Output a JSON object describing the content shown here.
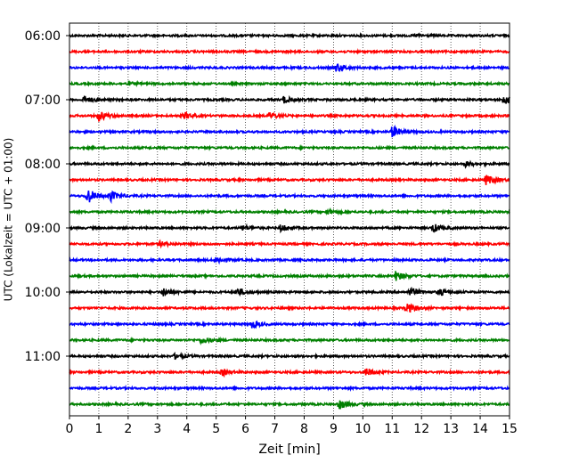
{
  "chart_data": {
    "type": "line",
    "title": "",
    "xlabel": "Zeit  [min]",
    "ylabel": "UTC (Lokalzeit = UTC + 01:00)",
    "xlim": [
      0,
      15
    ],
    "x_ticks": [
      0,
      1,
      2,
      3,
      4,
      5,
      6,
      7,
      8,
      9,
      10,
      11,
      12,
      13,
      14,
      15
    ],
    "grid": "vertical dotted lines at each minute",
    "trace_interval_minutes": 15,
    "start_time": "06:00",
    "y_tick_labels": [
      "06:00",
      "07:00",
      "08:00",
      "09:00",
      "10:00",
      "11:00"
    ],
    "color_cycle": [
      "#000000",
      "#ff0000",
      "#0000ff",
      "#008000"
    ],
    "traces": [
      {
        "start": "06:00",
        "color": "#000000",
        "events": [
          {
            "t": 11.8,
            "amp": 0.15
          }
        ]
      },
      {
        "start": "06:15",
        "color": "#ff0000",
        "events": []
      },
      {
        "start": "06:30",
        "color": "#0000ff",
        "events": [
          {
            "t": 9.1,
            "amp": 0.5
          }
        ]
      },
      {
        "start": "06:45",
        "color": "#008000",
        "events": [
          {
            "t": 2.0,
            "amp": 0.15
          }
        ]
      },
      {
        "start": "07:00",
        "color": "#000000",
        "events": [
          {
            "t": 0.5,
            "amp": 0.4
          },
          {
            "t": 7.3,
            "amp": 0.4
          },
          {
            "t": 14.8,
            "amp": 0.6
          }
        ]
      },
      {
        "start": "07:15",
        "color": "#ff0000",
        "events": [
          {
            "t": 1.0,
            "amp": 0.6
          },
          {
            "t": 3.9,
            "amp": 0.4
          },
          {
            "t": 6.8,
            "amp": 0.4
          }
        ]
      },
      {
        "start": "07:30",
        "color": "#0000ff",
        "events": [
          {
            "t": 11.0,
            "amp": 0.7
          }
        ]
      },
      {
        "start": "07:45",
        "color": "#008000",
        "events": []
      },
      {
        "start": "08:00",
        "color": "#000000",
        "events": [
          {
            "t": 13.5,
            "amp": 0.3
          }
        ]
      },
      {
        "start": "08:15",
        "color": "#ff0000",
        "events": [
          {
            "t": 14.2,
            "amp": 0.6
          }
        ]
      },
      {
        "start": "08:30",
        "color": "#0000ff",
        "events": [
          {
            "t": 0.6,
            "amp": 1.0
          },
          {
            "t": 1.4,
            "amp": 0.6
          }
        ]
      },
      {
        "start": "08:45",
        "color": "#008000",
        "events": [
          {
            "t": 8.8,
            "amp": 0.3
          }
        ]
      },
      {
        "start": "09:00",
        "color": "#000000",
        "events": [
          {
            "t": 5.9,
            "amp": 0.3
          },
          {
            "t": 7.2,
            "amp": 0.4
          },
          {
            "t": 12.4,
            "amp": 0.5
          }
        ]
      },
      {
        "start": "09:15",
        "color": "#ff0000",
        "events": [
          {
            "t": 3.1,
            "amp": 0.3
          }
        ]
      },
      {
        "start": "09:30",
        "color": "#0000ff",
        "events": [
          {
            "t": 5.0,
            "amp": 0.4
          }
        ]
      },
      {
        "start": "09:45",
        "color": "#008000",
        "events": [
          {
            "t": 11.1,
            "amp": 0.6
          }
        ]
      },
      {
        "start": "10:00",
        "color": "#000000",
        "events": [
          {
            "t": 3.2,
            "amp": 0.5
          },
          {
            "t": 5.7,
            "amp": 0.5
          },
          {
            "t": 11.6,
            "amp": 0.5
          },
          {
            "t": 12.6,
            "amp": 0.4
          }
        ]
      },
      {
        "start": "10:15",
        "color": "#ff0000",
        "events": [
          {
            "t": 11.5,
            "amp": 0.6
          }
        ]
      },
      {
        "start": "10:30",
        "color": "#0000ff",
        "events": [
          {
            "t": 6.2,
            "amp": 0.5
          }
        ]
      },
      {
        "start": "10:45",
        "color": "#008000",
        "events": [
          {
            "t": 4.5,
            "amp": 0.4
          }
        ]
      },
      {
        "start": "11:00",
        "color": "#000000",
        "events": [
          {
            "t": 3.6,
            "amp": 0.3
          }
        ]
      },
      {
        "start": "11:15",
        "color": "#ff0000",
        "events": [
          {
            "t": 5.2,
            "amp": 0.4
          },
          {
            "t": 10.1,
            "amp": 0.5
          }
        ]
      },
      {
        "start": "11:30",
        "color": "#0000ff",
        "events": []
      },
      {
        "start": "11:45",
        "color": "#008000",
        "events": [
          {
            "t": 9.2,
            "amp": 0.6
          }
        ]
      }
    ]
  }
}
